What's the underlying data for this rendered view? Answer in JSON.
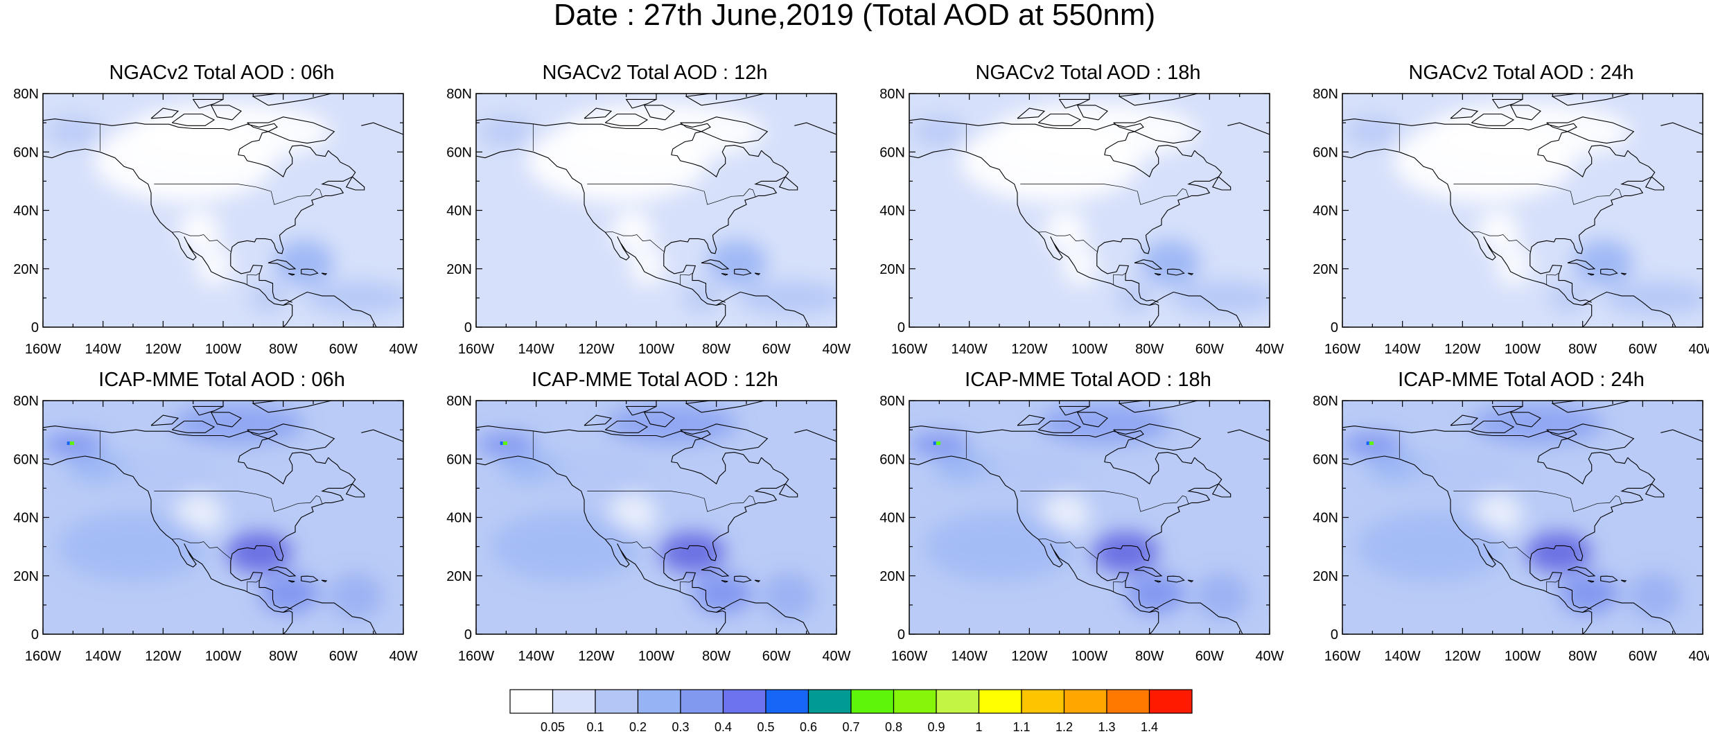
{
  "figure": {
    "title": "Date : 27th June,2019 (Total AOD at 550nm)"
  },
  "axes": {
    "lat_ticks": [
      "80N",
      "60N",
      "40N",
      "20N",
      "0"
    ],
    "lon_ticks": [
      "160W",
      "140W",
      "120W",
      "100W",
      "80W",
      "60W",
      "40W"
    ],
    "lat_range": [
      0,
      80
    ],
    "lon_range": [
      -160,
      -40
    ]
  },
  "panels": [
    {
      "title": "NGACv2 Total AOD : 06h",
      "model": "NGACv2",
      "hour": "06h"
    },
    {
      "title": "NGACv2 Total AOD : 12h",
      "model": "NGACv2",
      "hour": "12h"
    },
    {
      "title": "NGACv2 Total AOD : 18h",
      "model": "NGACv2",
      "hour": "18h"
    },
    {
      "title": "NGACv2 Total AOD : 24h",
      "model": "NGACv2",
      "hour": "24h"
    },
    {
      "title": "ICAP-MME Total AOD : 06h",
      "model": "ICAP-MME",
      "hour": "06h"
    },
    {
      "title": "ICAP-MME Total AOD : 12h",
      "model": "ICAP-MME",
      "hour": "12h"
    },
    {
      "title": "ICAP-MME Total AOD : 18h",
      "model": "ICAP-MME",
      "hour": "18h"
    },
    {
      "title": "ICAP-MME Total AOD : 24h",
      "model": "ICAP-MME",
      "hour": "24h"
    }
  ],
  "colorbar": {
    "labels": [
      "0.05",
      "0.1",
      "0.2",
      "0.3",
      "0.4",
      "0.5",
      "0.6",
      "0.7",
      "0.8",
      "0.9",
      "1",
      "1.1",
      "1.2",
      "1.3",
      "1.4"
    ],
    "colors": [
      "#ffffff",
      "#d6e0fa",
      "#b4c6f6",
      "#96b3f5",
      "#8299f0",
      "#6b73ee",
      "#1766f5",
      "#019b94",
      "#5ff50a",
      "#87f50a",
      "#c3f544",
      "#ffff00",
      "#ffc400",
      "#ffa600",
      "#ff7800",
      "#ff1a00"
    ]
  }
}
